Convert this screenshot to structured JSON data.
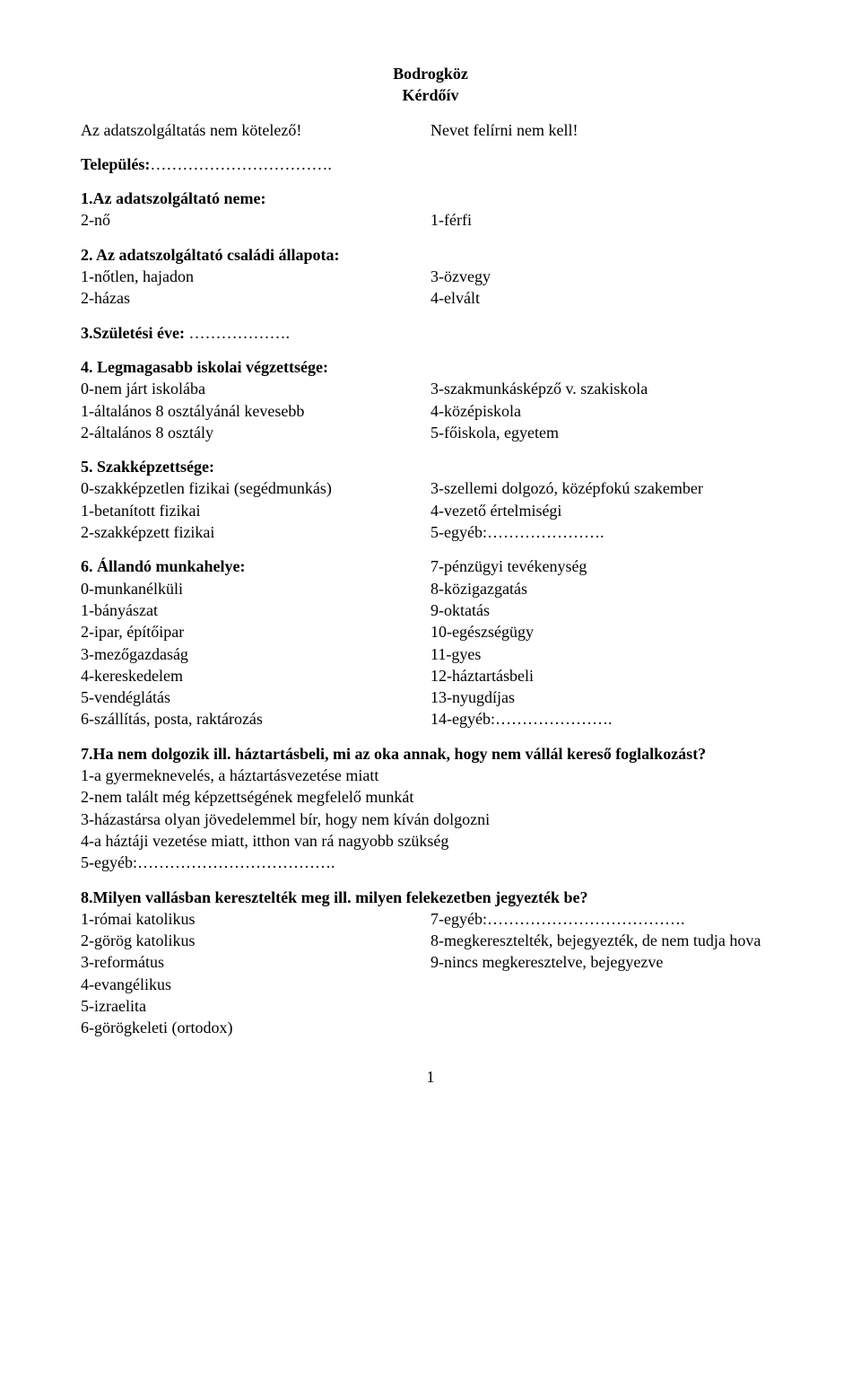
{
  "header": {
    "title1": "Bodrogköz",
    "title2": "Kérdőív"
  },
  "intro": {
    "left": "Az adatszolgáltatás nem kötelező!",
    "right": "Nevet felírni nem kell!",
    "telepules_label": "Település:",
    "telepules_dots": "……………………………."
  },
  "q1": {
    "heading": "1.Az adatszolgáltató neme:",
    "left": "2-nő",
    "right": "1-férfi"
  },
  "q2": {
    "heading": "2. Az adatszolgáltató családi állapota:",
    "l1": "1-nőtlen, hajadon",
    "l2": "2-házas",
    "r1": "3-özvegy",
    "r2": "4-elvált"
  },
  "q3": {
    "heading": "3.Születési éve:",
    "dots": " ………………."
  },
  "q4": {
    "heading": "4. Legmagasabb iskolai végzettsége:",
    "l1": "0-nem járt iskolába",
    "l2": "1-általános 8 osztályánál kevesebb",
    "l3": "2-általános 8 osztály",
    "r1": "3-szakmunkásképző v. szakiskola",
    "r2": "4-középiskola",
    "r3": "5-főiskola, egyetem"
  },
  "q5": {
    "heading": "5. Szakképzettsége:",
    "l1": "0-szakképzetlen fizikai (segédmunkás)",
    "l2": "1-betanított fizikai",
    "l3": "2-szakképzett fizikai",
    "r1": "3-szellemi dolgozó, középfokú szakember",
    "r2": "4-vezető értelmiségi",
    "r3": "5-egyéb:…………………."
  },
  "q6": {
    "heading": "6. Állandó munkahelye:",
    "l1": " 0-munkanélküli",
    "l2": "1-bányászat",
    "l3": "2-ipar, építőipar",
    "l4": "3-mezőgazdaság",
    "l5": "4-kereskedelem",
    "l6": "5-vendéglátás",
    "l7": "6-szállítás, posta, raktározás",
    "r0": "7-pénzügyi tevékenység",
    "r1": "8-közigazgatás",
    "r2": "9-oktatás",
    "r3": "10-egészségügy",
    "r4": "11-gyes",
    "r5": "12-háztartásbeli",
    "r6": "13-nyugdíjas",
    "r7": "14-egyéb:…………………."
  },
  "q7": {
    "heading": "7.Ha nem dolgozik ill. háztartásbeli, mi az oka annak, hogy nem vállál kereső foglalkozást?",
    "l1": "1-a gyermeknevelés, a háztartásvezetése miatt",
    "l2": "2-nem talált még képzettségének megfelelő munkát",
    "l3": "3-házastársa olyan jövedelemmel bír, hogy nem kíván dolgozni",
    "l4": "4-a háztáji vezetése miatt, itthon van rá nagyobb szükség",
    "l5": "5-egyéb:………………………………."
  },
  "q8": {
    "heading": "8.Milyen vallásban keresztelték meg ill. milyen felekezetben jegyezték be?",
    "l1": "1-római katolikus",
    "l2": "2-görög katolikus",
    "l3": "3-református",
    "l4": "4-evangélikus",
    "l5": "5-izraelita",
    "l6": "6-görögkeleti (ortodox)",
    "r1": "7-egyéb:……………………………….",
    "r2": "8-megkeresztelték, bejegyezték, de nem tudja hova",
    "r3": "9-nincs megkeresztelve, bejegyezve"
  },
  "footer": {
    "page": "1"
  }
}
